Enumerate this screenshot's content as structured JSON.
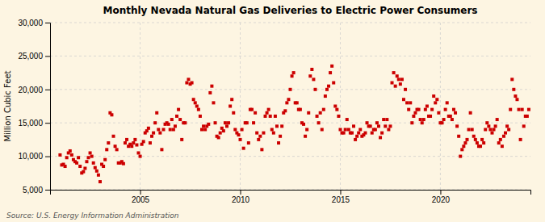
{
  "chart_data": {
    "type": "scatter",
    "title": "Monthly Nevada Natural Gas Deliveries to Electric Power Consumers",
    "ylabel": "Million Cubic Feet",
    "source": "Source: U.S. Energy Information Administration",
    "color": "#cc0000",
    "marker": "square",
    "grid": true,
    "xlim": [
      2000.5,
      2024.5
    ],
    "xticks": [
      2005,
      2010,
      2015,
      2020
    ],
    "ylim": [
      5000,
      30000
    ],
    "yticks": [
      {
        "value": 5000,
        "label": "5,000"
      },
      {
        "value": 10000,
        "label": "10,000"
      },
      {
        "value": 15000,
        "label": "15,000"
      },
      {
        "value": 20000,
        "label": "20,000"
      },
      {
        "value": 25000,
        "label": "25,000"
      },
      {
        "value": 30000,
        "label": "30,000"
      }
    ],
    "x": [
      2001,
      2001.083333,
      2001.166667,
      2001.25,
      2001.333333,
      2001.416667,
      2001.5,
      2001.583333,
      2001.666667,
      2001.75,
      2001.833333,
      2001.916667,
      2002,
      2002.083333,
      2002.166667,
      2002.25,
      2002.333333,
      2002.416667,
      2002.5,
      2002.583333,
      2002.666667,
      2002.75,
      2002.833333,
      2002.916667,
      2003,
      2003.083333,
      2003.166667,
      2003.25,
      2003.333333,
      2003.416667,
      2003.5,
      2003.583333,
      2003.666667,
      2003.75,
      2003.833333,
      2003.916667,
      2004,
      2004.083333,
      2004.166667,
      2004.25,
      2004.333333,
      2004.416667,
      2004.5,
      2004.583333,
      2004.666667,
      2004.75,
      2004.833333,
      2004.916667,
      2005,
      2005.083333,
      2005.166667,
      2005.25,
      2005.333333,
      2005.416667,
      2005.5,
      2005.583333,
      2005.666667,
      2005.75,
      2005.833333,
      2005.916667,
      2006,
      2006.083333,
      2006.166667,
      2006.25,
      2006.333333,
      2006.416667,
      2006.5,
      2006.583333,
      2006.666667,
      2006.75,
      2006.833333,
      2006.916667,
      2007,
      2007.083333,
      2007.166667,
      2007.25,
      2007.333333,
      2007.416667,
      2007.5,
      2007.583333,
      2007.666667,
      2007.75,
      2007.833333,
      2007.916667,
      2008,
      2008.083333,
      2008.166667,
      2008.25,
      2008.333333,
      2008.416667,
      2008.5,
      2008.583333,
      2008.666667,
      2008.75,
      2008.833333,
      2008.916667,
      2009,
      2009.083333,
      2009.166667,
      2009.25,
      2009.333333,
      2009.416667,
      2009.5,
      2009.583333,
      2009.666667,
      2009.75,
      2009.833333,
      2009.916667,
      2010,
      2010.083333,
      2010.166667,
      2010.25,
      2010.333333,
      2010.416667,
      2010.5,
      2010.583333,
      2010.666667,
      2010.75,
      2010.833333,
      2010.916667,
      2011,
      2011.083333,
      2011.166667,
      2011.25,
      2011.333333,
      2011.416667,
      2011.5,
      2011.583333,
      2011.666667,
      2011.75,
      2011.833333,
      2011.916667,
      2012,
      2012.083333,
      2012.166667,
      2012.25,
      2012.333333,
      2012.416667,
      2012.5,
      2012.583333,
      2012.666667,
      2012.75,
      2012.833333,
      2012.916667,
      2013,
      2013.083333,
      2013.166667,
      2013.25,
      2013.333333,
      2013.416667,
      2013.5,
      2013.583333,
      2013.666667,
      2013.75,
      2013.833333,
      2013.916667,
      2014,
      2014.083333,
      2014.166667,
      2014.25,
      2014.333333,
      2014.416667,
      2014.5,
      2014.583333,
      2014.666667,
      2014.75,
      2014.833333,
      2014.916667,
      2015,
      2015.083333,
      2015.166667,
      2015.25,
      2015.333333,
      2015.416667,
      2015.5,
      2015.583333,
      2015.666667,
      2015.75,
      2015.833333,
      2015.916667,
      2016,
      2016.083333,
      2016.166667,
      2016.25,
      2016.333333,
      2016.416667,
      2016.5,
      2016.583333,
      2016.666667,
      2016.75,
      2016.833333,
      2016.916667,
      2017,
      2017.083333,
      2017.166667,
      2017.25,
      2017.333333,
      2017.416667,
      2017.5,
      2017.583333,
      2017.666667,
      2017.75,
      2017.833333,
      2017.916667,
      2018,
      2018.083333,
      2018.166667,
      2018.25,
      2018.333333,
      2018.416667,
      2018.5,
      2018.583333,
      2018.666667,
      2018.75,
      2018.833333,
      2018.916667,
      2019,
      2019.083333,
      2019.166667,
      2019.25,
      2019.333333,
      2019.416667,
      2019.5,
      2019.583333,
      2019.666667,
      2019.75,
      2019.833333,
      2019.916667,
      2020,
      2020.083333,
      2020.166667,
      2020.25,
      2020.333333,
      2020.416667,
      2020.5,
      2020.583333,
      2020.666667,
      2020.75,
      2020.833333,
      2020.916667,
      2021,
      2021.083333,
      2021.166667,
      2021.25,
      2021.333333,
      2021.416667,
      2021.5,
      2021.583333,
      2021.666667,
      2021.75,
      2021.833333,
      2021.916667,
      2022,
      2022.083333,
      2022.166667,
      2022.25,
      2022.333333,
      2022.416667,
      2022.5,
      2022.583333,
      2022.666667,
      2022.75,
      2022.833333,
      2022.916667,
      2023,
      2023.083333,
      2023.166667,
      2023.25,
      2023.333333,
      2023.416667,
      2023.5,
      2023.583333,
      2023.666667,
      2023.75,
      2023.833333,
      2023.916667,
      2024,
      2024.083333,
      2024.166667,
      2024.25,
      2024.333333,
      2024.416667
    ],
    "values": [
      10200,
      8700,
      8800,
      8500,
      9800,
      10500,
      10800,
      10200,
      9500,
      9200,
      9000,
      9800,
      8500,
      7500,
      7700,
      8200,
      9200,
      9800,
      10500,
      10000,
      9000,
      8300,
      7800,
      7200,
      6200,
      8800,
      8500,
      9500,
      11000,
      12000,
      16500,
      16200,
      13000,
      11500,
      11000,
      9000,
      9000,
      9200,
      8900,
      12000,
      12500,
      11500,
      11800,
      11500,
      12000,
      12500,
      11700,
      10500,
      10000,
      11800,
      12200,
      13500,
      13800,
      14200,
      12000,
      13000,
      13500,
      15000,
      16500,
      14000,
      13500,
      11000,
      14000,
      14800,
      15000,
      14800,
      14000,
      15500,
      14000,
      14500,
      16000,
      17000,
      15500,
      12500,
      15000,
      15000,
      21000,
      21500,
      20800,
      21000,
      18500,
      18000,
      17500,
      17000,
      16000,
      14000,
      14500,
      14000,
      14500,
      14800,
      19500,
      20500,
      18000,
      15000,
      13000,
      12800,
      13500,
      14200,
      13800,
      15000,
      14500,
      15000,
      17500,
      18500,
      16500,
      14000,
      13500,
      13200,
      12500,
      14000,
      11200,
      15000,
      15000,
      12000,
      17000,
      17000,
      15000,
      16500,
      13500,
      12500,
      13000,
      11000,
      13500,
      16000,
      16500,
      17000,
      16000,
      14000,
      13500,
      16000,
      14500,
      12000,
      13000,
      14500,
      16500,
      16800,
      18000,
      18500,
      20000,
      22000,
      22500,
      18000,
      18000,
      17000,
      17000,
      15000,
      14800,
      13000,
      14000,
      16500,
      22000,
      23000,
      21500,
      20000,
      16000,
      15000,
      16500,
      14000,
      17000,
      19000,
      20000,
      20500,
      22500,
      23500,
      21000,
      17500,
      17000,
      16000,
      14000,
      13500,
      13500,
      14000,
      15500,
      14000,
      13500,
      13500,
      14500,
      12500,
      13000,
      13500,
      14000,
      13000,
      13200,
      13500,
      15000,
      14500,
      14500,
      13500,
      14000,
      14000,
      15000,
      14500,
      12800,
      13500,
      15500,
      14500,
      15500,
      14000,
      14500,
      21000,
      22500,
      20500,
      22000,
      21500,
      20800,
      21500,
      18500,
      20000,
      18000,
      17000,
      18000,
      15000,
      16000,
      16500,
      17000,
      17000,
      15500,
      15000,
      15500,
      17000,
      17500,
      16000,
      16000,
      17000,
      19000,
      18000,
      18500,
      16500,
      15000,
      15000,
      15500,
      17000,
      18000,
      16000,
      16000,
      15500,
      17000,
      16500,
      14500,
      13000,
      10000,
      11000,
      11500,
      12000,
      12500,
      14000,
      16500,
      14000,
      13000,
      12500,
      12000,
      11500,
      11500,
      12500,
      12000,
      14000,
      15000,
      14500,
      14000,
      13500,
      14000,
      14500,
      15500,
      12000,
      12500,
      11500,
      13000,
      13500,
      14500,
      14000,
      17000,
      21500,
      20000,
      19000,
      18500,
      17000,
      12500,
      17000,
      14500,
      16000,
      16000,
      17000
    ]
  }
}
